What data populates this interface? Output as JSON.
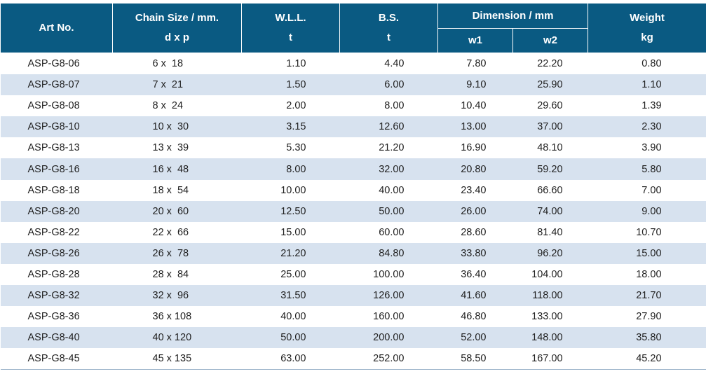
{
  "header": {
    "art_no": "Art No.",
    "chain_size": "Chain Size / mm.",
    "chain_size_sub": "d x p",
    "wll": "W.L.L.",
    "wll_unit": "t",
    "bs": "B.S.",
    "bs_unit": "t",
    "dimension": "Dimension / mm",
    "w1": "w1",
    "w2": "w2",
    "weight": "Weight",
    "weight_unit": "kg"
  },
  "rows": [
    {
      "art": "ASP-G8-06",
      "chain": "6 x  18",
      "wll": "1.10",
      "bs": "4.40",
      "w1": "7.80",
      "w2": "22.20",
      "weight": "0.80"
    },
    {
      "art": "ASP-G8-07",
      "chain": "7 x  21",
      "wll": "1.50",
      "bs": "6.00",
      "w1": "9.10",
      "w2": "25.90",
      "weight": "1.10"
    },
    {
      "art": "ASP-G8-08",
      "chain": "8 x  24",
      "wll": "2.00",
      "bs": "8.00",
      "w1": "10.40",
      "w2": "29.60",
      "weight": "1.39"
    },
    {
      "art": "ASP-G8-10",
      "chain": "10 x  30",
      "wll": "3.15",
      "bs": "12.60",
      "w1": "13.00",
      "w2": "37.00",
      "weight": "2.30"
    },
    {
      "art": "ASP-G8-13",
      "chain": "13 x  39",
      "wll": "5.30",
      "bs": "21.20",
      "w1": "16.90",
      "w2": "48.10",
      "weight": "3.90"
    },
    {
      "art": "ASP-G8-16",
      "chain": "16 x  48",
      "wll": "8.00",
      "bs": "32.00",
      "w1": "20.80",
      "w2": "59.20",
      "weight": "5.80"
    },
    {
      "art": "ASP-G8-18",
      "chain": "18 x  54",
      "wll": "10.00",
      "bs": "40.00",
      "w1": "23.40",
      "w2": "66.60",
      "weight": "7.00"
    },
    {
      "art": "ASP-G8-20",
      "chain": "20 x  60",
      "wll": "12.50",
      "bs": "50.00",
      "w1": "26.00",
      "w2": "74.00",
      "weight": "9.00"
    },
    {
      "art": "ASP-G8-22",
      "chain": "22 x  66",
      "wll": "15.00",
      "bs": "60.00",
      "w1": "28.60",
      "w2": "81.40",
      "weight": "10.70"
    },
    {
      "art": "ASP-G8-26",
      "chain": "26 x  78",
      "wll": "21.20",
      "bs": "84.80",
      "w1": "33.80",
      "w2": "96.20",
      "weight": "15.00"
    },
    {
      "art": "ASP-G8-28",
      "chain": "28 x  84",
      "wll": "25.00",
      "bs": "100.00",
      "w1": "36.40",
      "w2": "104.00",
      "weight": "18.00"
    },
    {
      "art": "ASP-G8-32",
      "chain": "32 x  96",
      "wll": "31.50",
      "bs": "126.00",
      "w1": "41.60",
      "w2": "118.00",
      "weight": "21.70"
    },
    {
      "art": "ASP-G8-36",
      "chain": "36 x 108",
      "wll": "40.00",
      "bs": "160.00",
      "w1": "46.80",
      "w2": "133.00",
      "weight": "27.90"
    },
    {
      "art": "ASP-G8-40",
      "chain": "40 x 120",
      "wll": "50.00",
      "bs": "200.00",
      "w1": "52.00",
      "w2": "148.00",
      "weight": "35.80"
    },
    {
      "art": "ASP-G8-45",
      "chain": "45 x 135",
      "wll": "63.00",
      "bs": "252.00",
      "w1": "58.50",
      "w2": "167.00",
      "weight": "45.20"
    }
  ]
}
